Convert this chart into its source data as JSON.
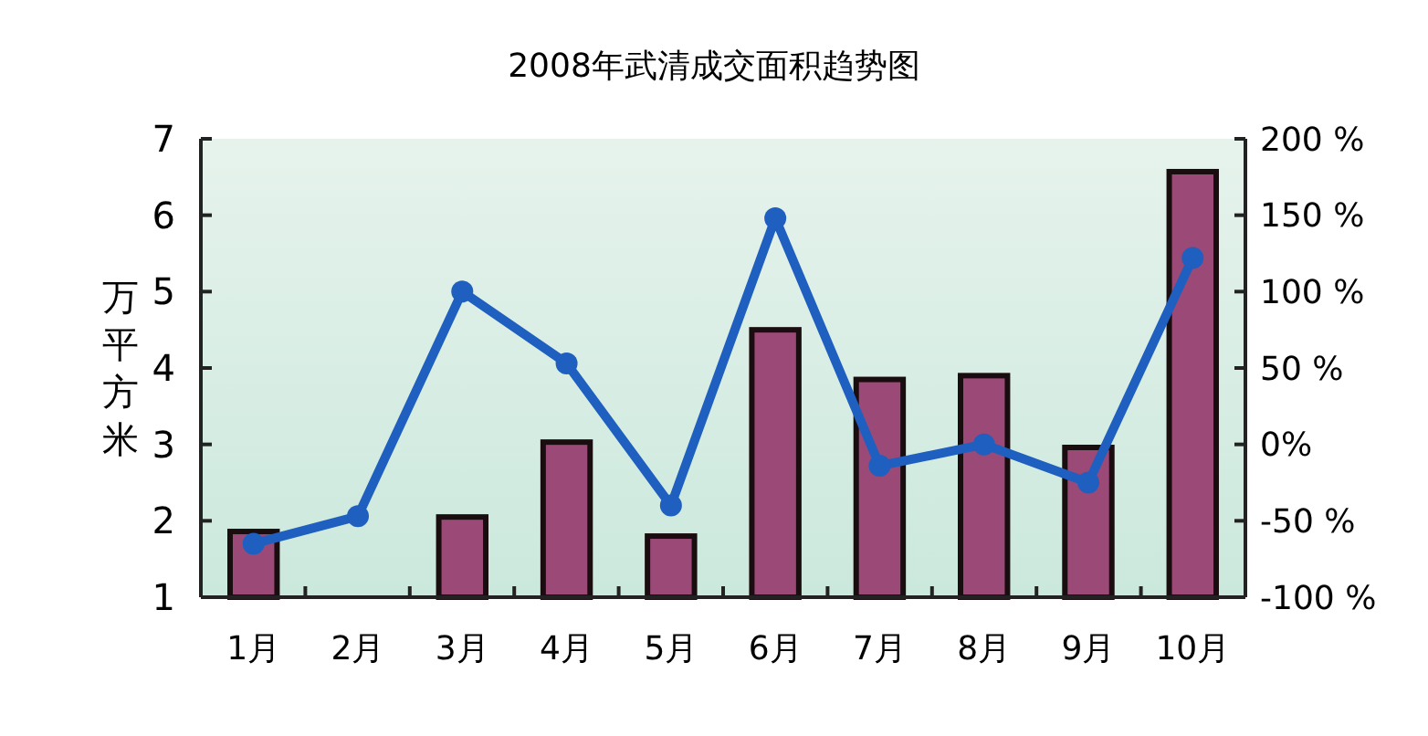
{
  "chart_data": {
    "type": "bar",
    "title": "2008年武清成交面积趋势图",
    "ylabel": "万平方米",
    "categories": [
      "1月",
      "2月",
      "3月",
      "4月",
      "5月",
      "6月",
      "7月",
      "8月",
      "9月",
      "10月"
    ],
    "series": [
      {
        "color": "#9b4a78",
        "values": [
          1.86,
          null,
          2.05,
          3.03,
          1.8,
          4.5,
          3.85,
          3.9,
          2.96,
          6.57
        ]
      },
      {
        "type": "line",
        "axis": "y2",
        "color": "#1f5fbf",
        "marker": "circle",
        "values": [
          -65,
          -47,
          100,
          53,
          -40,
          148,
          -14,
          0,
          -25,
          122
        ]
      }
    ],
    "ylim": [
      1,
      7
    ],
    "yticks": [
      1,
      2,
      3,
      4,
      5,
      6,
      7
    ],
    "y2lim": [
      -100,
      200
    ],
    "y2ticks": [
      {
        "value": -100,
        "label": "-100 %"
      },
      {
        "value": -50,
        "label": "-50 %"
      },
      {
        "value": 0,
        "label": "0%"
      },
      {
        "value": 50,
        "label": "50 %"
      },
      {
        "value": 100,
        "label": "100 %"
      },
      {
        "value": 150,
        "label": "150 %"
      },
      {
        "value": 200,
        "label": "200 %"
      }
    ],
    "grid": false
  }
}
